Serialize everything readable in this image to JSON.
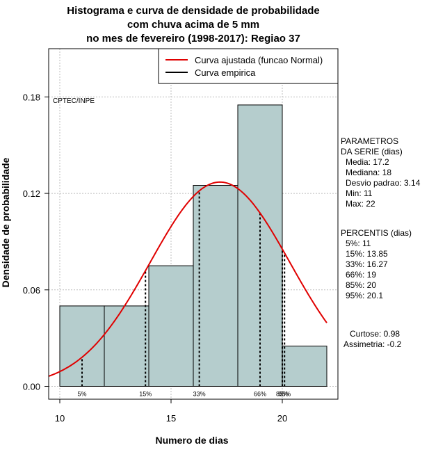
{
  "chart_data": {
    "type": "bar",
    "title": [
      "Histograma e curva de densidade de probabilidade",
      "com chuva acima de 5 mm",
      "no mes de fevereiro (1998-2017): Regiao 37"
    ],
    "xlabel": "Numero de dias",
    "ylabel": "Densidade de probabilidade",
    "xlim": [
      9.5,
      22.5
    ],
    "ylim": [
      -0.008,
      0.21
    ],
    "xticks": [
      10,
      15,
      20
    ],
    "yticks": [
      0.0,
      0.06,
      0.12,
      0.18
    ],
    "ytick_labels": [
      "0.00",
      "0.06",
      "0.12",
      "0.18"
    ],
    "bins": [
      {
        "from": 10,
        "to": 12,
        "density": 0.05
      },
      {
        "from": 12,
        "to": 14,
        "density": 0.05
      },
      {
        "from": 14,
        "to": 16,
        "density": 0.075
      },
      {
        "from": 16,
        "to": 18,
        "density": 0.125
      },
      {
        "from": 18,
        "to": 20,
        "density": 0.175
      },
      {
        "from": 20,
        "to": 22,
        "density": 0.025
      }
    ],
    "normal_fit": {
      "mean": 17.2,
      "sd": 3.14,
      "x_from": 9.5,
      "x_to": 22
    },
    "percentile_lines": [
      {
        "label": "5%",
        "x": 11
      },
      {
        "label": "15%",
        "x": 13.85
      },
      {
        "label": "33%",
        "x": 16.27
      },
      {
        "label": "66%",
        "x": 19
      },
      {
        "label": "85%",
        "x": 20
      },
      {
        "label": "95%",
        "x": 20.1
      }
    ],
    "legend": [
      {
        "label": "Curva ajustada (funcao Normal)",
        "color": "#e00000"
      },
      {
        "label": "Curva empirica",
        "color": "#000000"
      }
    ],
    "legend_position": "top-right",
    "annotation": "CPTEC/INPE",
    "bar_color": "#b5cdcd",
    "curve_color": "#e00000"
  },
  "side_panel": {
    "params_title": [
      "PARAMETROS",
      "DA SERIE (dias)"
    ],
    "params": [
      "Media: 17.2",
      "Mediana: 18",
      "Desvio padrao: 3.14",
      "Min: 11",
      "Max: 22"
    ],
    "percentis_title": "PERCENTIS (dias)",
    "percentis": [
      "5%: 11",
      "15%: 13.85",
      "33%: 16.27",
      "66%: 19",
      "85%: 20",
      "95%: 20.1"
    ],
    "curtose": "Curtose: 0.98",
    "assimetria": "Assimetria: -0.2"
  }
}
